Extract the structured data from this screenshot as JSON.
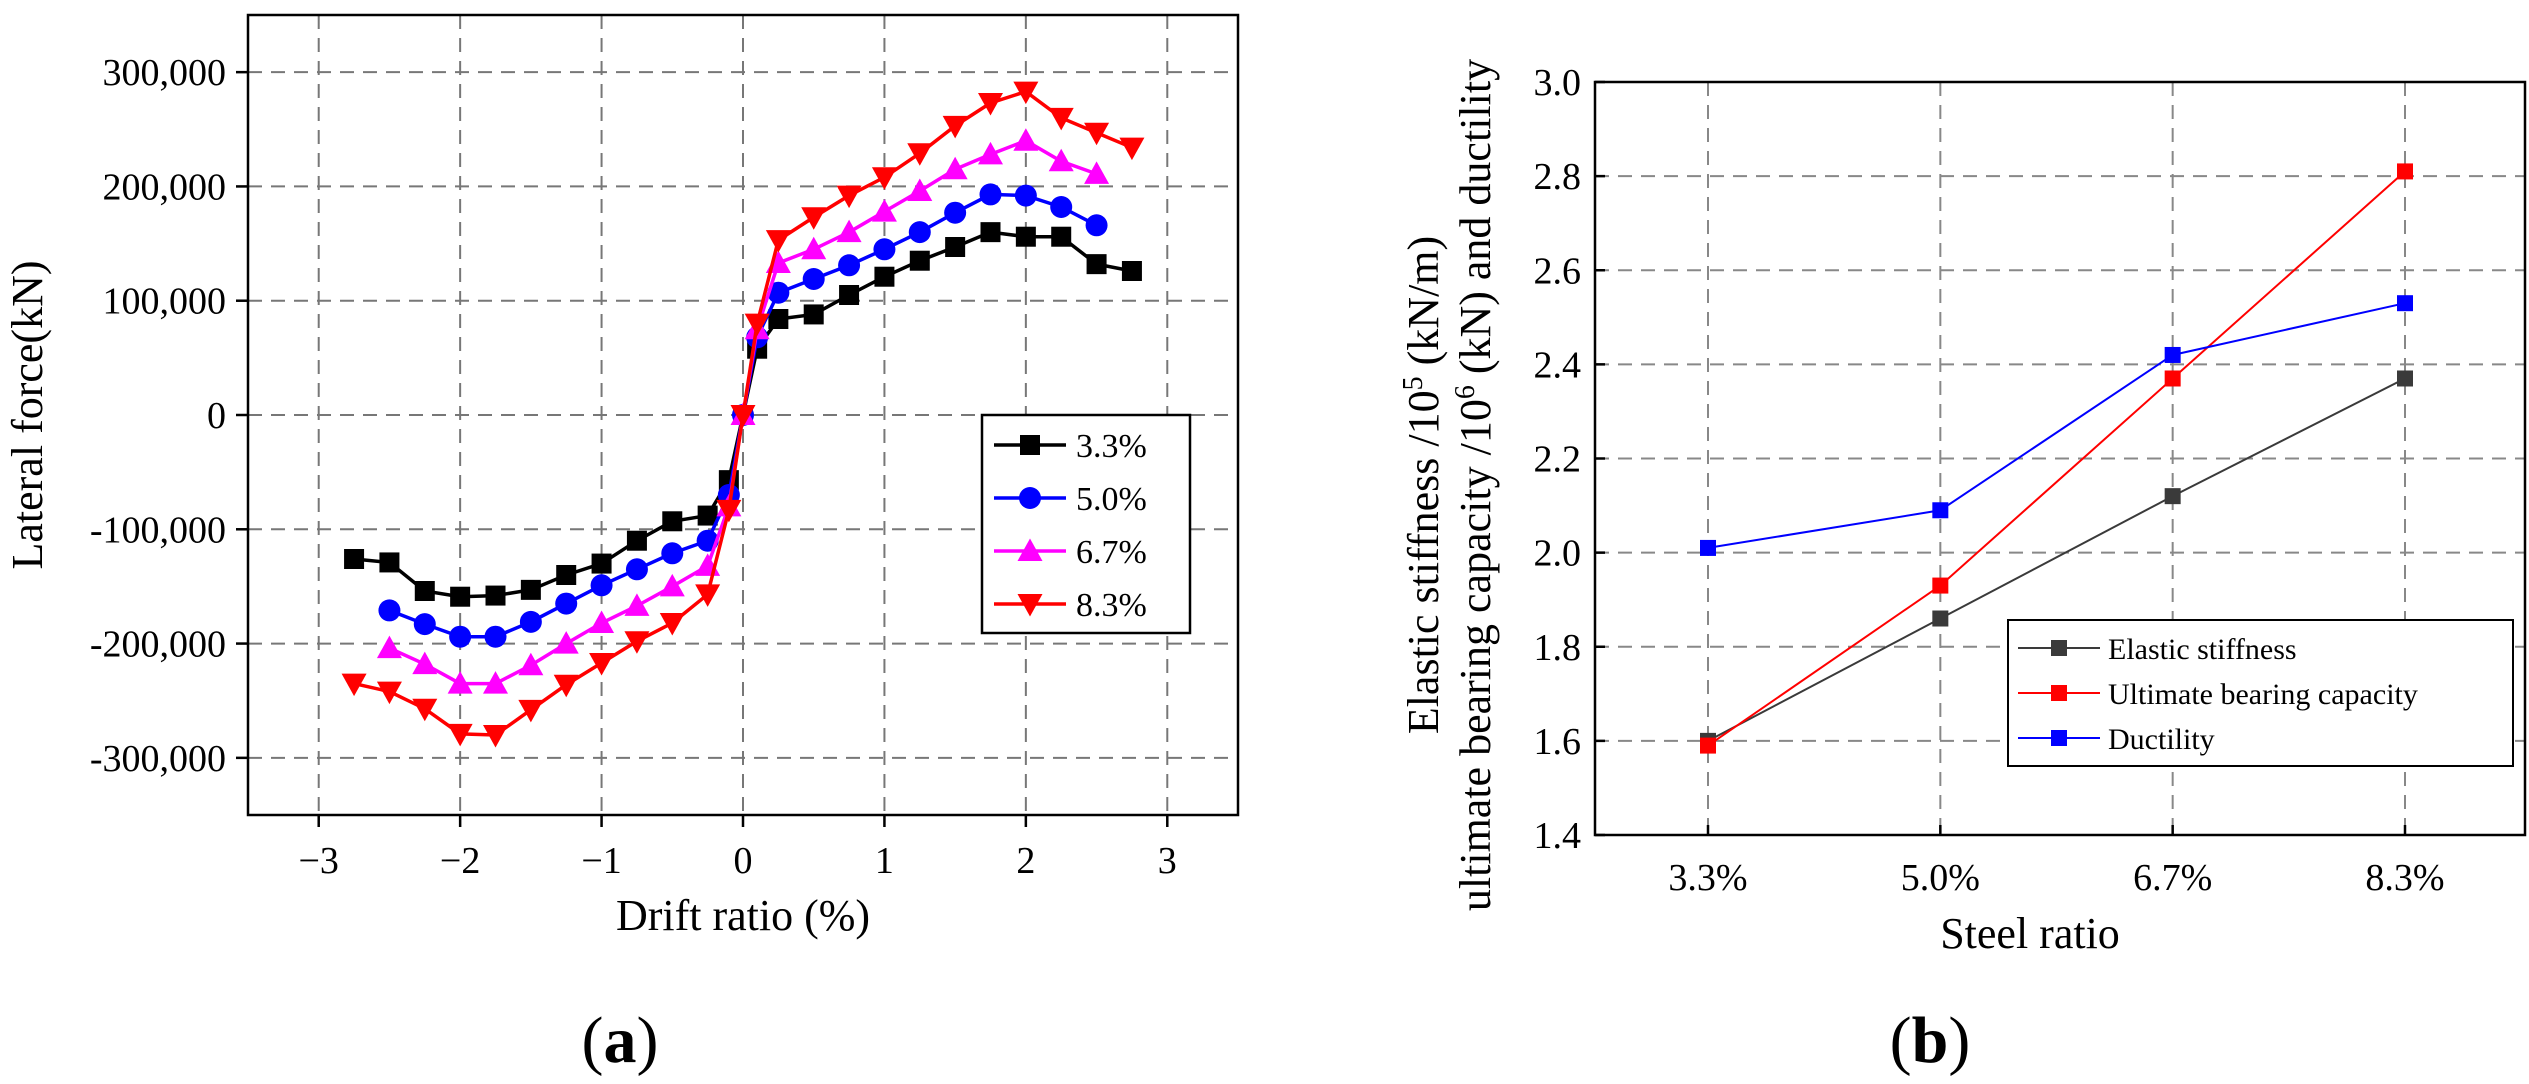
{
  "chart_data": [
    {
      "id": "a",
      "type": "line",
      "panel_label": "a",
      "xlabel": "Drift ratio (%)",
      "ylabel": "Lateral force(kN)",
      "xlim": [
        -3.5,
        3.5
      ],
      "ylim": [
        -350000,
        350000
      ],
      "xticks": [
        -3,
        -2,
        -1,
        0,
        1,
        2,
        3
      ],
      "xtick_labels": [
        "−3",
        "−2",
        "−1",
        "0",
        "1",
        "2",
        "3"
      ],
      "yticks": [
        -300000,
        -200000,
        -100000,
        0,
        100000,
        200000,
        300000
      ],
      "ytick_labels": [
        "-300,000",
        "-200,000",
        "-100,000",
        "0",
        "100,000",
        "200,000",
        "300,000"
      ],
      "grid": true,
      "legend_position": "right",
      "series": [
        {
          "name": "3.3%",
          "color": "#000000",
          "marker": "square",
          "x": [
            -2.75,
            -2.5,
            -2.25,
            -2.0,
            -1.75,
            -1.5,
            -1.25,
            -1.0,
            -0.75,
            -0.5,
            -0.25,
            -0.1,
            0,
            0.1,
            0.25,
            0.5,
            0.75,
            1.0,
            1.25,
            1.5,
            1.75,
            2.0,
            2.25,
            2.5,
            2.75
          ],
          "y": [
            -126000,
            -129000,
            -154000,
            -159000,
            -158000,
            -153000,
            -140000,
            -130000,
            -110000,
            -93000,
            -88000,
            -57000,
            0,
            58000,
            84000,
            88000,
            105000,
            121000,
            135000,
            147000,
            160000,
            156000,
            156000,
            132000,
            126000
          ]
        },
        {
          "name": "5.0%",
          "color": "#0000ff",
          "marker": "circle",
          "x": [
            -2.5,
            -2.25,
            -2.0,
            -1.75,
            -1.5,
            -1.25,
            -1.0,
            -0.75,
            -0.5,
            -0.25,
            -0.1,
            0,
            0.1,
            0.25,
            0.5,
            0.75,
            1.0,
            1.25,
            1.5,
            1.75,
            2.0,
            2.25,
            2.5
          ],
          "y": [
            -171000,
            -183000,
            -194000,
            -194000,
            -181000,
            -165000,
            -149000,
            -135000,
            -121000,
            -110000,
            -70000,
            0,
            68000,
            107000,
            119000,
            131000,
            145000,
            160000,
            177000,
            193000,
            192000,
            182000,
            166000
          ]
        },
        {
          "name": "6.7%",
          "color": "#ff00ff",
          "marker": "triangle-up",
          "x": [
            -2.5,
            -2.25,
            -2.0,
            -1.75,
            -1.5,
            -1.25,
            -1.0,
            -0.75,
            -0.5,
            -0.25,
            -0.1,
            0,
            0.1,
            0.25,
            0.5,
            0.75,
            1.0,
            1.25,
            1.5,
            1.75,
            2.0,
            2.25,
            2.5
          ],
          "y": [
            -204000,
            -218000,
            -235000,
            -235000,
            -219000,
            -200000,
            -182000,
            -167000,
            -150000,
            -132000,
            -80000,
            0,
            75000,
            133000,
            145000,
            160000,
            178000,
            196000,
            215000,
            228000,
            240000,
            222000,
            211000
          ]
        },
        {
          "name": "8.3%",
          "color": "#ff0000",
          "marker": "triangle-down",
          "x": [
            -2.75,
            -2.5,
            -2.25,
            -2.0,
            -1.75,
            -1.5,
            -1.25,
            -1.0,
            -0.75,
            -0.5,
            -0.25,
            -0.1,
            0,
            0.1,
            0.25,
            0.5,
            0.75,
            1.0,
            1.25,
            1.5,
            1.75,
            2.0,
            2.25,
            2.5,
            2.75
          ],
          "y": [
            -235000,
            -242000,
            -257000,
            -279000,
            -280000,
            -258000,
            -236000,
            -217000,
            -198000,
            -182000,
            -157000,
            -83000,
            0,
            80000,
            153000,
            173000,
            192000,
            208000,
            229000,
            253000,
            273000,
            283000,
            260000,
            247000,
            234000
          ]
        }
      ]
    },
    {
      "id": "b",
      "type": "line",
      "panel_label": "b",
      "xlabel": "Steel ratio",
      "ylabel_line1": "Elastic stiffness /10^5 (kN/m)",
      "ylabel_line2": "ultimate bearing capacity /10^6 (kN) and ductility",
      "ylabel_parts": {
        "l1_a": "Elastic stiffness /10",
        "l1_sup": "5",
        "l1_b": " (kN/m)",
        "l2_a": "ultimate bearing capacity /10",
        "l2_sup": "6",
        "l2_b": " (kN) and ductility"
      },
      "categories": [
        "3.3%",
        "5.0%",
        "6.7%",
        "8.3%"
      ],
      "ylim": [
        1.4,
        3.0
      ],
      "yticks": [
        1.4,
        1.6,
        1.8,
        2.0,
        2.2,
        2.4,
        2.6,
        2.8,
        3.0
      ],
      "ytick_labels": [
        "1.4",
        "1.6",
        "1.8",
        "2.0",
        "2.2",
        "2.4",
        "2.6",
        "2.8",
        "3.0"
      ],
      "grid": true,
      "legend_position": "bottom-right",
      "series": [
        {
          "name": "Elastic stiffness",
          "color": "#3a3a3a",
          "marker": "square",
          "values": [
            1.6,
            1.86,
            2.12,
            2.37
          ]
        },
        {
          "name": "Ultimate bearing capacity",
          "color": "#ff0000",
          "marker": "square",
          "values": [
            1.59,
            1.93,
            2.37,
            2.81
          ]
        },
        {
          "name": "Ductility",
          "color": "#0000ff",
          "marker": "square",
          "values": [
            2.01,
            2.09,
            2.42,
            2.53
          ]
        }
      ]
    }
  ]
}
